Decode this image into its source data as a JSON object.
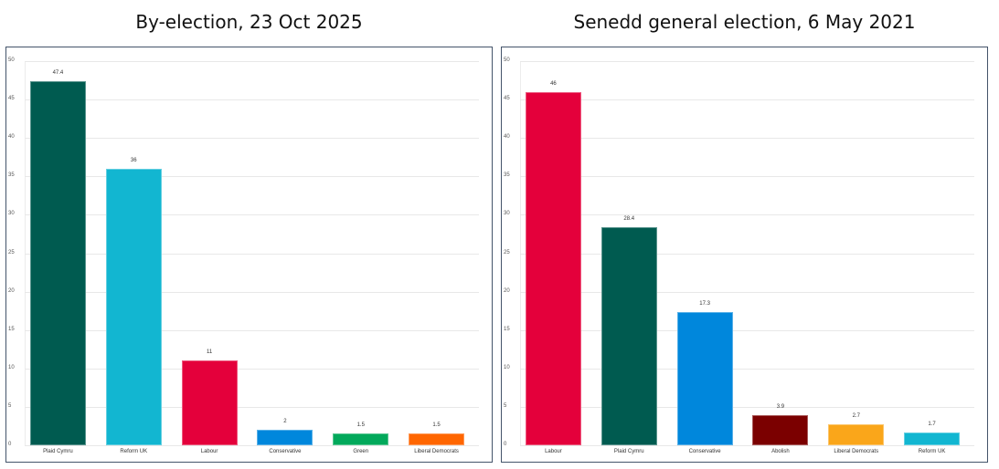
{
  "titles": {
    "left": "By-election, 23 Oct 2025",
    "right": "Senedd general election, 6 May 2021"
  },
  "chart_data": [
    {
      "type": "bar",
      "title": "By-election, 23 Oct 2025",
      "xlabel": "",
      "ylabel": "",
      "ylim": [
        0,
        50
      ],
      "yticks": [
        0,
        5,
        10,
        15,
        20,
        25,
        30,
        35,
        40,
        45,
        50
      ],
      "grid": true,
      "legend": "none",
      "categories": [
        "Plaid Cymru",
        "Reform UK",
        "Labour",
        "Conservative",
        "Green",
        "Liberal Democrats"
      ],
      "values": [
        47.4,
        36,
        11,
        2,
        1.5,
        1.5
      ],
      "value_labels": [
        "47.4",
        "36",
        "11",
        "2",
        "1.5",
        "1.5"
      ],
      "colors": [
        "#005b50",
        "#12b6d1",
        "#e4003b",
        "#0087dc",
        "#02a95b",
        "#ff6600"
      ]
    },
    {
      "type": "bar",
      "title": "Senedd general election, 6 May 2021",
      "xlabel": "",
      "ylabel": "",
      "ylim": [
        0,
        50
      ],
      "yticks": [
        0,
        5,
        10,
        15,
        20,
        25,
        30,
        35,
        40,
        45,
        50
      ],
      "grid": true,
      "legend": "none",
      "categories": [
        "Labour",
        "Plaid Cymru",
        "Conservative",
        "Abolish",
        "Liberal Democrats",
        "Reform UK"
      ],
      "values": [
        46,
        28.4,
        17.3,
        3.9,
        2.7,
        1.7
      ],
      "value_labels": [
        "46",
        "28.4",
        "17.3",
        "3.9",
        "2.7",
        "1.7"
      ],
      "colors": [
        "#e4003b",
        "#005b50",
        "#0087dc",
        "#7b0000",
        "#faa61a",
        "#12b6d1"
      ]
    }
  ]
}
